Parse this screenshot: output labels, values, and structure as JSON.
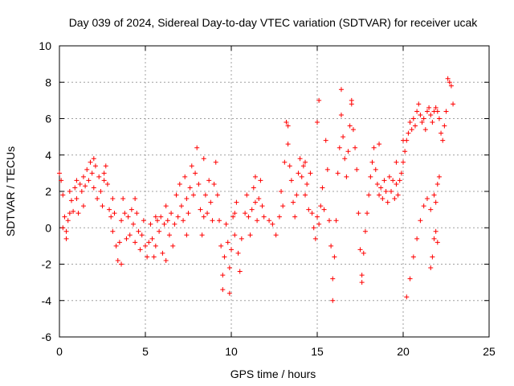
{
  "chart_data": {
    "type": "scatter",
    "title": "Day 039 of 2024, Sidereal Day-to-day VTEC variation (SDTVAR) for receiver ucak",
    "xlabel": "GPS time / hours",
    "ylabel": "SDTVAR / TECUs",
    "xlim": [
      0,
      25
    ],
    "ylim": [
      -6,
      10
    ],
    "xticks": [
      "0",
      "5",
      "10",
      "15",
      "20",
      "25"
    ],
    "yticks": [
      "-6",
      "-4",
      "-2",
      "0",
      "2",
      "4",
      "6",
      "8",
      "10"
    ],
    "grid": true,
    "marker": "+",
    "series": [
      {
        "name": "SDTVAR",
        "color": "#ff0000",
        "points": [
          [
            0.0,
            3.0
          ],
          [
            0.1,
            2.6
          ],
          [
            0.2,
            1.8
          ],
          [
            0.3,
            0.6
          ],
          [
            0.4,
            -0.2
          ],
          [
            0.5,
            0.4
          ],
          [
            0.6,
            2.0
          ],
          [
            0.7,
            1.5
          ],
          [
            0.8,
            0.9
          ],
          [
            0.9,
            2.2
          ],
          [
            1.0,
            1.6
          ],
          [
            1.1,
            0.8
          ],
          [
            1.2,
            2.4
          ],
          [
            1.3,
            2.0
          ],
          [
            1.4,
            2.8
          ],
          [
            1.5,
            2.3
          ],
          [
            1.6,
            3.2
          ],
          [
            1.7,
            2.6
          ],
          [
            1.8,
            3.6
          ],
          [
            1.9,
            3.0
          ],
          [
            2.0,
            2.2
          ],
          [
            2.1,
            3.4
          ],
          [
            2.2,
            1.6
          ],
          [
            2.3,
            2.8
          ],
          [
            2.4,
            2.0
          ],
          [
            2.5,
            1.2
          ],
          [
            2.6,
            2.6
          ],
          [
            2.7,
            3.4
          ],
          [
            2.8,
            2.4
          ],
          [
            2.9,
            1.0
          ],
          [
            3.0,
            0.6
          ],
          [
            3.1,
            -0.2
          ],
          [
            3.2,
            0.8
          ],
          [
            3.3,
            -1.0
          ],
          [
            3.4,
            -1.8
          ],
          [
            3.5,
            -0.8
          ],
          [
            3.6,
            0.4
          ],
          [
            3.7,
            1.6
          ],
          [
            3.8,
            0.8
          ],
          [
            3.9,
            -0.6
          ],
          [
            4.0,
            0.6
          ],
          [
            4.1,
            -0.4
          ],
          [
            4.2,
            1.0
          ],
          [
            4.3,
            0.2
          ],
          [
            4.4,
            -0.8
          ],
          [
            4.5,
            0.8
          ],
          [
            4.6,
            -0.2
          ],
          [
            4.7,
            -1.2
          ],
          [
            4.8,
            -0.4
          ],
          [
            4.9,
            0.4
          ],
          [
            5.0,
            -1.0
          ],
          [
            5.1,
            -1.6
          ],
          [
            5.2,
            -0.8
          ],
          [
            5.3,
            0.2
          ],
          [
            5.4,
            -0.6
          ],
          [
            5.5,
            -1.6
          ],
          [
            5.6,
            -1.0
          ],
          [
            5.7,
            0.4
          ],
          [
            5.8,
            -0.2
          ],
          [
            5.9,
            0.6
          ],
          [
            6.0,
            -1.4
          ],
          [
            6.1,
            0.2
          ],
          [
            6.2,
            1.2
          ],
          [
            6.3,
            0.4
          ],
          [
            6.4,
            -0.4
          ],
          [
            6.5,
            0.8
          ],
          [
            6.6,
            -1.0
          ],
          [
            6.7,
            0.2
          ],
          [
            6.8,
            1.8
          ],
          [
            6.9,
            0.6
          ],
          [
            7.0,
            2.4
          ],
          [
            7.1,
            1.2
          ],
          [
            7.2,
            0.4
          ],
          [
            7.3,
            2.8
          ],
          [
            7.4,
            1.6
          ],
          [
            7.5,
            0.8
          ],
          [
            7.6,
            2.2
          ],
          [
            7.7,
            3.4
          ],
          [
            7.8,
            1.8
          ],
          [
            7.9,
            3.0
          ],
          [
            8.0,
            4.4
          ],
          [
            8.1,
            2.4
          ],
          [
            8.2,
            1.0
          ],
          [
            8.3,
            -0.4
          ],
          [
            8.4,
            0.6
          ],
          [
            8.5,
            1.8
          ],
          [
            8.6,
            0.8
          ],
          [
            8.7,
            2.6
          ],
          [
            8.8,
            1.4
          ],
          [
            8.9,
            0.4
          ],
          [
            9.0,
            2.4
          ],
          [
            9.1,
            3.6
          ],
          [
            9.2,
            1.8
          ],
          [
            9.3,
            0.4
          ],
          [
            9.4,
            -1.0
          ],
          [
            9.5,
            -2.6
          ],
          [
            9.6,
            -1.6
          ],
          [
            9.7,
            0.2
          ],
          [
            9.8,
            -0.8
          ],
          [
            9.9,
            -2.2
          ],
          [
            10.0,
            -1.2
          ],
          [
            10.1,
            0.6
          ],
          [
            10.2,
            -0.4
          ],
          [
            10.3,
            1.4
          ],
          [
            10.4,
            -1.4
          ],
          [
            10.5,
            -2.4
          ],
          [
            10.6,
            -0.6
          ],
          [
            10.8,
            0.8
          ],
          [
            10.9,
            1.8
          ],
          [
            11.0,
            0.6
          ],
          [
            11.1,
            -0.4
          ],
          [
            11.2,
            1.0
          ],
          [
            11.3,
            2.2
          ],
          [
            11.4,
            1.4
          ],
          [
            11.5,
            0.4
          ],
          [
            11.6,
            1.6
          ],
          [
            11.7,
            2.6
          ],
          [
            11.8,
            1.2
          ],
          [
            11.9,
            0.6
          ],
          [
            12.2,
            0.4
          ],
          [
            12.4,
            0.2
          ],
          [
            12.6,
            -0.4
          ],
          [
            12.8,
            0.6
          ],
          [
            12.9,
            2.0
          ],
          [
            13.0,
            1.2
          ],
          [
            13.1,
            3.6
          ],
          [
            13.2,
            5.8
          ],
          [
            13.3,
            4.6
          ],
          [
            13.4,
            3.4
          ],
          [
            13.5,
            2.6
          ],
          [
            13.6,
            1.4
          ],
          [
            13.7,
            0.6
          ],
          [
            13.8,
            1.8
          ],
          [
            13.9,
            3.0
          ],
          [
            14.0,
            3.8
          ],
          [
            14.1,
            2.8
          ],
          [
            14.2,
            3.4
          ],
          [
            14.3,
            1.8
          ],
          [
            14.4,
            2.4
          ],
          [
            14.5,
            1.0
          ],
          [
            14.6,
            3.0
          ],
          [
            14.7,
            0.8
          ],
          [
            14.8,
            0.0
          ],
          [
            14.9,
            -0.6
          ],
          [
            15.0,
            0.6
          ],
          [
            15.1,
            0.2
          ],
          [
            15.2,
            1.2
          ],
          [
            15.3,
            2.2
          ],
          [
            15.4,
            1.0
          ],
          [
            15.5,
            4.8
          ],
          [
            15.6,
            3.2
          ],
          [
            15.7,
            0.4
          ],
          [
            15.8,
            -1.0
          ],
          [
            15.9,
            -2.8
          ],
          [
            16.0,
            -1.6
          ],
          [
            16.1,
            0.4
          ],
          [
            16.2,
            3.0
          ],
          [
            16.3,
            4.4
          ],
          [
            16.4,
            6.2
          ],
          [
            16.5,
            5.0
          ],
          [
            16.6,
            3.8
          ],
          [
            16.7,
            2.8
          ],
          [
            16.8,
            4.2
          ],
          [
            16.9,
            5.6
          ],
          [
            17.0,
            6.8
          ],
          [
            17.1,
            5.4
          ],
          [
            17.2,
            4.4
          ],
          [
            17.3,
            3.2
          ],
          [
            17.4,
            0.8
          ],
          [
            17.5,
            -1.2
          ],
          [
            17.6,
            -2.6
          ],
          [
            17.7,
            -1.4
          ],
          [
            17.8,
            -0.2
          ],
          [
            17.9,
            0.8
          ],
          [
            18.0,
            1.8
          ],
          [
            18.1,
            2.8
          ],
          [
            18.2,
            3.6
          ],
          [
            18.3,
            4.4
          ],
          [
            18.4,
            3.2
          ],
          [
            18.5,
            2.4
          ],
          [
            18.6,
            1.8
          ],
          [
            18.7,
            2.2
          ],
          [
            18.8,
            1.6
          ],
          [
            18.9,
            2.6
          ],
          [
            19.0,
            2.0
          ],
          [
            19.1,
            1.4
          ],
          [
            19.2,
            2.8
          ],
          [
            19.3,
            2.0
          ],
          [
            19.4,
            2.6
          ],
          [
            19.5,
            1.6
          ],
          [
            19.6,
            2.4
          ],
          [
            19.7,
            1.8
          ],
          [
            19.8,
            2.6
          ],
          [
            19.9,
            3.0
          ],
          [
            20.0,
            3.6
          ],
          [
            20.1,
            4.2
          ],
          [
            20.2,
            4.8
          ],
          [
            20.3,
            5.2
          ],
          [
            20.4,
            5.8
          ],
          [
            20.5,
            5.4
          ],
          [
            20.6,
            6.0
          ],
          [
            20.7,
            5.6
          ],
          [
            20.8,
            6.4
          ],
          [
            20.9,
            6.8
          ],
          [
            21.0,
            6.2
          ],
          [
            21.1,
            5.8
          ],
          [
            21.2,
            6.0
          ],
          [
            21.3,
            5.4
          ],
          [
            21.4,
            6.4
          ],
          [
            21.5,
            6.6
          ],
          [
            21.6,
            6.2
          ],
          [
            21.7,
            5.8
          ],
          [
            21.8,
            6.4
          ],
          [
            21.9,
            6.6
          ],
          [
            22.0,
            6.4
          ],
          [
            22.1,
            6.0
          ],
          [
            22.2,
            5.2
          ],
          [
            22.3,
            4.8
          ],
          [
            22.4,
            5.6
          ],
          [
            22.5,
            6.4
          ],
          [
            22.6,
            8.2
          ],
          [
            22.7,
            8.0
          ],
          [
            22.8,
            7.8
          ],
          [
            22.9,
            6.8
          ],
          [
            20.2,
            -3.8
          ],
          [
            20.4,
            -2.8
          ],
          [
            20.6,
            -1.6
          ],
          [
            20.8,
            -0.6
          ],
          [
            21.0,
            0.4
          ],
          [
            21.2,
            1.2
          ],
          [
            21.4,
            1.6
          ],
          [
            21.6,
            1.0
          ],
          [
            21.8,
            1.8
          ],
          [
            21.9,
            1.4
          ],
          [
            22.0,
            2.4
          ],
          [
            22.1,
            2.8
          ],
          [
            21.6,
            -2.2
          ],
          [
            21.7,
            -1.6
          ],
          [
            21.8,
            -0.6
          ],
          [
            21.9,
            -0.2
          ],
          [
            22.0,
            -0.8
          ],
          [
            0.2,
            0.0
          ],
          [
            0.4,
            -0.6
          ],
          [
            0.6,
            0.8
          ],
          [
            1.0,
            2.6
          ],
          [
            1.4,
            1.2
          ],
          [
            2.0,
            3.8
          ],
          [
            2.6,
            3.0
          ],
          [
            3.1,
            1.6
          ],
          [
            3.6,
            -2.0
          ],
          [
            4.4,
            1.6
          ],
          [
            5.6,
            0.6
          ],
          [
            6.2,
            -1.8
          ],
          [
            7.4,
            -0.4
          ],
          [
            8.4,
            3.8
          ],
          [
            9.5,
            -3.4
          ],
          [
            9.9,
            -3.6
          ],
          [
            10.2,
            0.8
          ],
          [
            11.4,
            2.8
          ],
          [
            13.3,
            5.6
          ],
          [
            14.3,
            3.6
          ],
          [
            15.0,
            5.8
          ],
          [
            15.1,
            7.0
          ],
          [
            15.9,
            -4.0
          ],
          [
            16.4,
            7.6
          ],
          [
            17.0,
            7.0
          ],
          [
            17.6,
            -3.0
          ],
          [
            18.6,
            4.6
          ],
          [
            19.6,
            3.6
          ],
          [
            20.0,
            4.8
          ]
        ]
      }
    ]
  }
}
